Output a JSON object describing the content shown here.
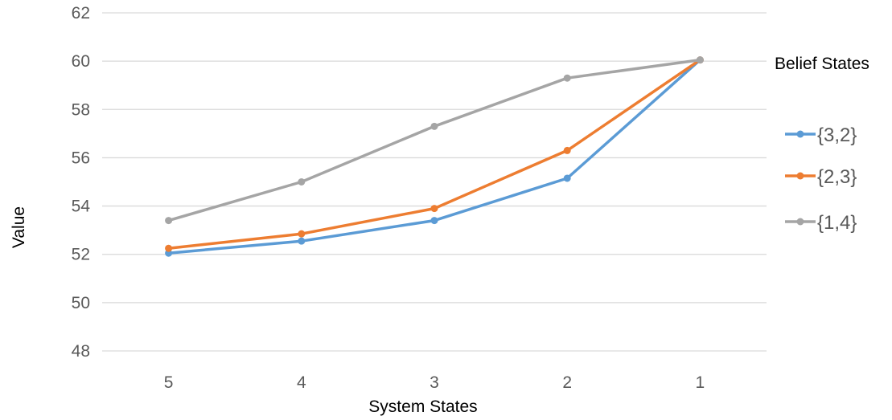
{
  "chart_data": {
    "type": "line",
    "categories": [
      "5",
      "4",
      "3",
      "2",
      "1"
    ],
    "series": [
      {
        "name": "{3,2}",
        "color": "#5b9bd5",
        "values": [
          52.05,
          52.55,
          53.4,
          55.15,
          60.05
        ]
      },
      {
        "name": "{2,3}",
        "color": "#ed7d31",
        "values": [
          52.25,
          52.85,
          53.9,
          56.3,
          60.05
        ]
      },
      {
        "name": "{1,4}",
        "color": "#a5a5a5",
        "values": [
          53.4,
          55.0,
          57.3,
          59.3,
          60.05
        ]
      }
    ],
    "title": "",
    "xlabel": "System States",
    "ylabel": "Value",
    "ylim": [
      48,
      62
    ],
    "yticks": [
      "48",
      "50",
      "52",
      "54",
      "56",
      "58",
      "60",
      "62"
    ],
    "grid": true,
    "legend": {
      "title": "Belief States",
      "position": "right"
    }
  }
}
